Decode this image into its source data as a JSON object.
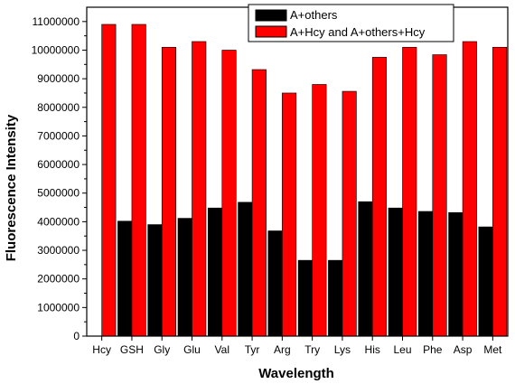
{
  "chart_data": {
    "type": "bar",
    "title": "",
    "xlabel": "Wavelength",
    "ylabel": "Fluorescence Intensity",
    "categories": [
      "Hcy",
      "GSH",
      "Gly",
      "Glu",
      "Val",
      "Tyr",
      "Arg",
      "Try",
      "Lys",
      "His",
      "Leu",
      "Phe",
      "Asp",
      "Met"
    ],
    "series": [
      {
        "name": "A+others",
        "color": "#000000",
        "values": [
          0,
          4020000,
          3900000,
          4120000,
          4480000,
          4680000,
          3680000,
          2650000,
          2650000,
          4700000,
          4480000,
          4360000,
          4320000,
          3820000
        ]
      },
      {
        "name": "A+Hcy and A+others+Hcy",
        "color": "#ff0000",
        "values": [
          10900000,
          10900000,
          10100000,
          10300000,
          10000000,
          9320000,
          8500000,
          8800000,
          8560000,
          9750000,
          10100000,
          9840000,
          10300000,
          10100000
        ]
      }
    ],
    "ylim": [
      0,
      11500000
    ],
    "yticks": [
      "0",
      "1000000",
      "2000000",
      "3000000",
      "4000000",
      "5000000",
      "6000000",
      "7000000",
      "8000000",
      "9000000",
      "10000000",
      "11000000"
    ],
    "grid": false,
    "legend_position": "top-right"
  }
}
